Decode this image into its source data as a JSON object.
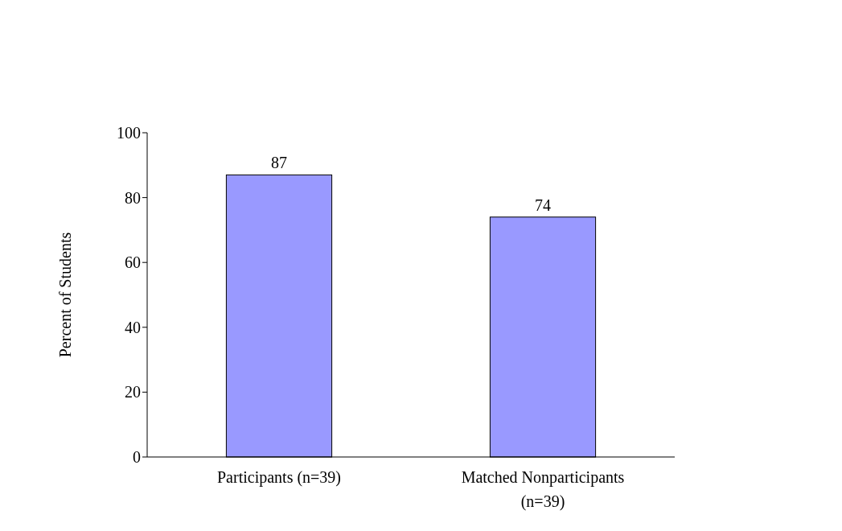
{
  "chart_data": {
    "type": "bar",
    "ylabel": "Percent of Students",
    "categories": [
      "Participants (n=39)",
      "Matched Nonparticipants (n=39)"
    ],
    "values": [
      87,
      74
    ],
    "color": "#9999ff",
    "ylim": [
      0,
      100
    ],
    "yticks": [
      0,
      20,
      40,
      60,
      80,
      100
    ],
    "data_labels": true
  }
}
